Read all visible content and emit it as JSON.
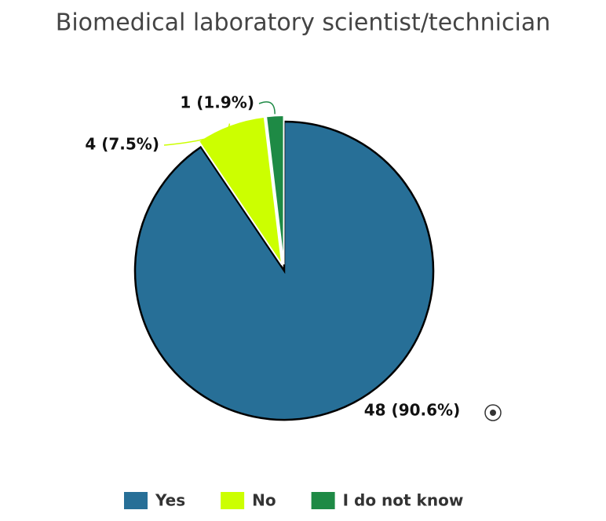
{
  "chart_data": {
    "type": "pie",
    "title": "Biomedical laboratory scientist/technician",
    "categories": [
      "Yes",
      "No",
      "I do not know"
    ],
    "values": [
      48,
      4,
      1
    ],
    "value_labels": [
      "48 (90.6%)",
      "4 (7.5%)",
      "1 (1.9%)"
    ],
    "colors": [
      "#276f97",
      "#ccff00",
      "#1e8a45"
    ],
    "legend": "bottom"
  }
}
